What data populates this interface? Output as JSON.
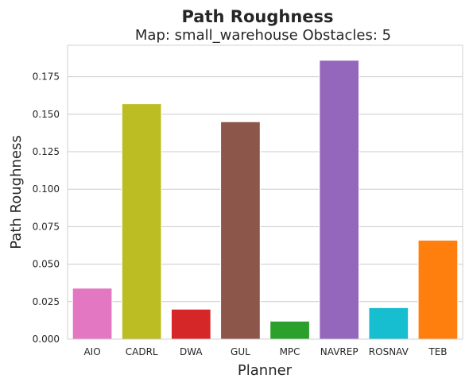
{
  "chart_data": {
    "type": "bar",
    "title": "Path Roughness",
    "subtitle": "Map: small_warehouse Obstacles: 5",
    "xlabel": "Planner",
    "ylabel": "Path Roughness",
    "categories": [
      "AIO",
      "CADRL",
      "DWA",
      "GUL",
      "MPC",
      "NAVREP",
      "ROSNAV",
      "TEB"
    ],
    "values": [
      0.034,
      0.157,
      0.02,
      0.145,
      0.012,
      0.186,
      0.021,
      0.066
    ],
    "colors": [
      "#e377c2",
      "#bcbd22",
      "#d62728",
      "#8c564b",
      "#2ca02c",
      "#9467bd",
      "#17becf",
      "#ff7f0e"
    ],
    "ylim": [
      0,
      0.196
    ],
    "yticks": [
      0.0,
      0.025,
      0.05,
      0.075,
      0.1,
      0.125,
      0.15,
      0.175
    ],
    "ytick_labels": [
      "0.000",
      "0.025",
      "0.050",
      "0.075",
      "0.100",
      "0.125",
      "0.150",
      "0.175"
    ],
    "grid": "horizontal",
    "background": "#ffffff",
    "grid_color": "#cccccc"
  }
}
